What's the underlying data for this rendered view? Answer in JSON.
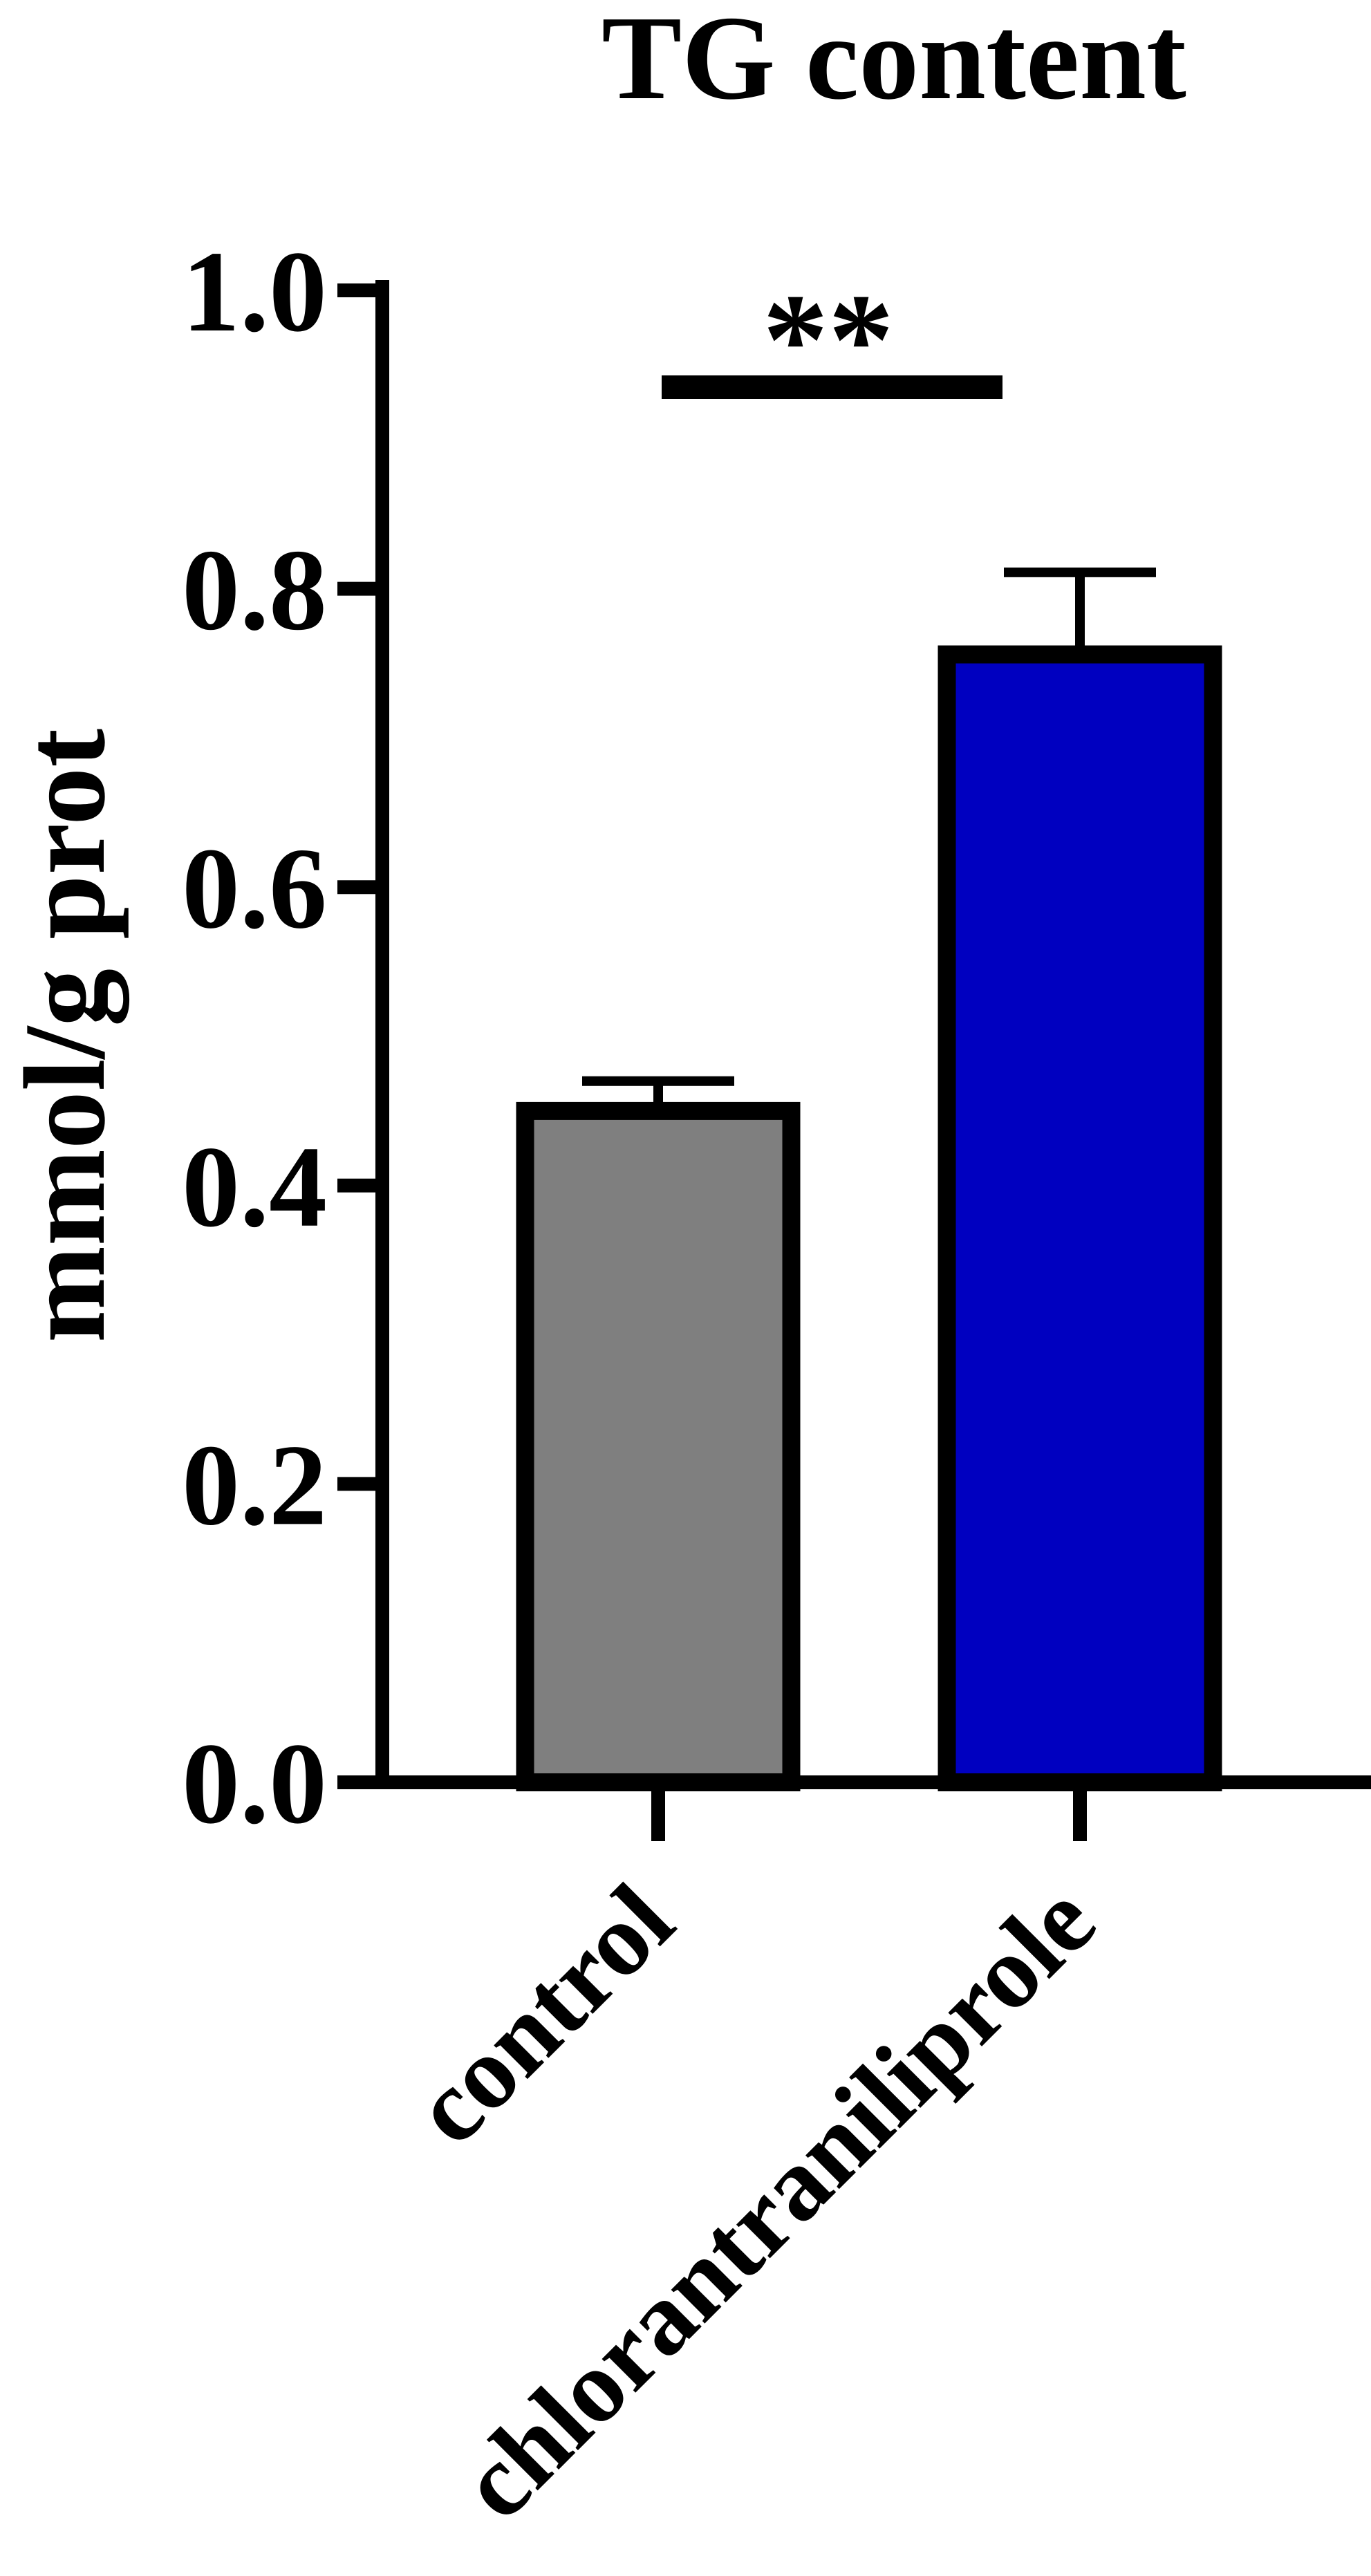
{
  "chart_data": {
    "type": "bar",
    "title": "TG content",
    "xlabel": "",
    "ylabel": "mmol/g prot",
    "ylim": [
      0,
      1.0
    ],
    "yticks": [
      0.0,
      0.2,
      0.4,
      0.6,
      0.8,
      1.0
    ],
    "ytick_labels": [
      "0.0",
      "0.2",
      "0.4",
      "0.6",
      "0.8",
      "1.0"
    ],
    "categories": [
      "control",
      "chlorantraniliprole"
    ],
    "values": [
      0.45,
      0.756
    ],
    "error_upper": [
      0.02,
      0.055
    ],
    "bar_colors": [
      "#7f7f7f",
      "#0000c0"
    ],
    "edge_color": "#000000",
    "grid": false,
    "legend": "none",
    "significance": {
      "label": "**",
      "between": [
        "control",
        "chlorantraniliprole"
      ]
    }
  }
}
